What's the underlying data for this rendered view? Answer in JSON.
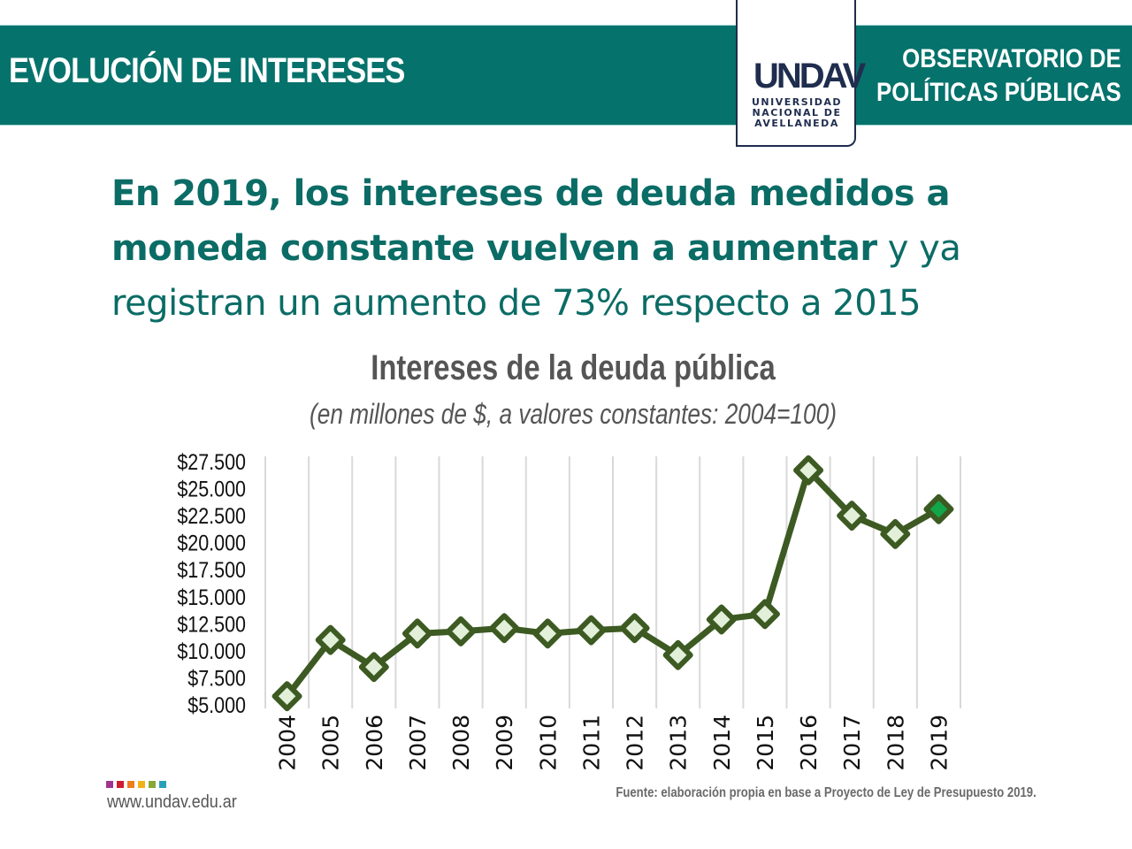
{
  "banner": {
    "title": "EVOLUCIÓN DE INTERESES",
    "observatory_line1": "OBSERVATORIO DE",
    "observatory_line2": "POLÍTICAS PÚBLICAS"
  },
  "logo": {
    "mark": "UNDAV",
    "line1": "UNIVERSIDAD",
    "line2": "NACIONAL DE",
    "line3": "AVELLANEDA",
    "color": "#1f2d4e"
  },
  "headline": {
    "bold_part1": "En 2019, los intereses de deuda medidos a moneda constante vuelven a aumentar",
    "light_part": " y ya registran un aumento de 73% respecto a 2015"
  },
  "footer": {
    "url": "www.undav.edu.ar",
    "source": "Fuente: elaboración propia en base a Proyecto de Ley de Presupuesto 2019.",
    "brand_colors": [
      "#a0358e",
      "#d11b2e",
      "#ee7d1e",
      "#f2b116",
      "#86a836",
      "#2aa0b8"
    ]
  },
  "colors": {
    "banner": "#06726c",
    "headline": "#0b6c66",
    "line": "#3c5a22",
    "marker_fill": "#e2efd9",
    "highlight_marker_fill": "#12a54a"
  },
  "chart_data": {
    "type": "line",
    "title": "Intereses de la deuda pública",
    "subtitle": "(en millones de $, a valores constantes: 2004=100)",
    "xlabel": "",
    "ylabel": "",
    "categories": [
      "2004",
      "2005",
      "2006",
      "2007",
      "2008",
      "2009",
      "2010",
      "2011",
      "2012",
      "2013",
      "2014",
      "2015",
      "2016",
      "2017",
      "2018",
      "2019"
    ],
    "series": [
      {
        "name": "Intereses de la deuda pública",
        "values": [
          5800,
          11000,
          8500,
          11600,
          11800,
          12100,
          11600,
          11900,
          12100,
          9600,
          12900,
          13400,
          26700,
          22500,
          20800,
          23100
        ],
        "highlight_index": 15
      }
    ],
    "ylim": [
      5000,
      27500
    ],
    "yticks": [
      5000,
      7500,
      10000,
      12500,
      15000,
      17500,
      20000,
      22500,
      25000,
      27500
    ],
    "ytick_labels": [
      "$5.000",
      "$7.500",
      "$10.000",
      "$12.500",
      "$15.000",
      "$17.500",
      "$20.000",
      "$22.500",
      "$25.000",
      "$27.500"
    ],
    "grid": "vertical",
    "legend": "none"
  }
}
